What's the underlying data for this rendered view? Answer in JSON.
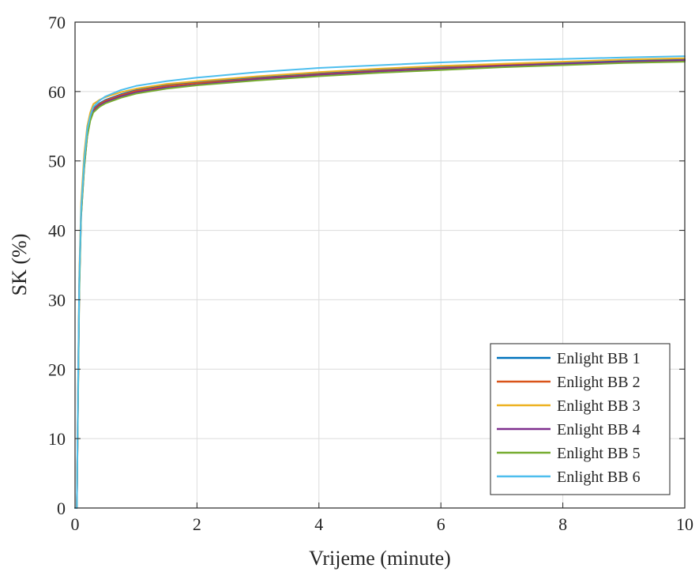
{
  "chart_data": {
    "type": "line",
    "title": "",
    "xlabel": "Vrijeme (minute)",
    "ylabel": "SK (%)",
    "xlim": [
      0,
      10
    ],
    "ylim": [
      0,
      70
    ],
    "xticks": [
      0,
      2,
      4,
      6,
      8,
      10
    ],
    "yticks": [
      0,
      10,
      20,
      30,
      40,
      50,
      60,
      70
    ],
    "grid": true,
    "legend_position": "bottom-right",
    "series": [
      {
        "name": "Enlight BB 1",
        "color": "#0072BD",
        "x": [
          0,
          0.03,
          0.05,
          0.07,
          0.1,
          0.15,
          0.2,
          0.25,
          0.3,
          0.4,
          0.5,
          0.75,
          1,
          1.5,
          2,
          3,
          4,
          5,
          6,
          7,
          8,
          9,
          10
        ],
        "y": [
          0,
          0,
          18,
          33,
          43,
          50,
          54,
          56,
          57.5,
          58.3,
          58.8,
          59.6,
          60.2,
          60.9,
          61.3,
          62.0,
          62.6,
          63.1,
          63.5,
          63.8,
          64.1,
          64.4,
          64.6
        ]
      },
      {
        "name": "Enlight BB 2",
        "color": "#D95319",
        "x": [
          0,
          0.03,
          0.05,
          0.07,
          0.1,
          0.15,
          0.2,
          0.25,
          0.3,
          0.4,
          0.5,
          0.75,
          1,
          1.5,
          2,
          3,
          4,
          5,
          6,
          7,
          8,
          9,
          10
        ],
        "y": [
          0,
          0,
          17,
          32,
          43,
          50,
          54,
          56,
          57.4,
          58.2,
          58.7,
          59.5,
          60.1,
          60.8,
          61.2,
          61.9,
          62.5,
          63.0,
          63.4,
          63.8,
          64.0,
          64.3,
          64.5
        ]
      },
      {
        "name": "Enlight BB 3",
        "color": "#EDB120",
        "x": [
          0,
          0.03,
          0.05,
          0.07,
          0.1,
          0.15,
          0.2,
          0.25,
          0.3,
          0.4,
          0.5,
          0.75,
          1,
          1.5,
          2,
          3,
          4,
          5,
          6,
          7,
          8,
          9,
          10
        ],
        "y": [
          0,
          0,
          19,
          34,
          44,
          51,
          55,
          57,
          58.2,
          58.8,
          59.2,
          59.9,
          60.4,
          61.1,
          61.5,
          62.2,
          62.8,
          63.3,
          63.7,
          64.0,
          64.3,
          64.6,
          64.8
        ]
      },
      {
        "name": "Enlight BB 4",
        "color": "#7E2F8E",
        "x": [
          0,
          0.03,
          0.05,
          0.07,
          0.1,
          0.15,
          0.2,
          0.25,
          0.3,
          0.4,
          0.5,
          0.75,
          1,
          1.5,
          2,
          3,
          4,
          5,
          6,
          7,
          8,
          9,
          10
        ],
        "y": [
          0,
          0,
          17,
          32,
          42,
          49,
          53.5,
          56,
          57.2,
          58.0,
          58.5,
          59.3,
          59.9,
          60.6,
          61.0,
          61.8,
          62.4,
          62.9,
          63.3,
          63.7,
          64.0,
          64.3,
          64.5
        ]
      },
      {
        "name": "Enlight BB 5",
        "color": "#77AC30",
        "x": [
          0,
          0.03,
          0.05,
          0.07,
          0.1,
          0.15,
          0.2,
          0.25,
          0.3,
          0.4,
          0.5,
          0.75,
          1,
          1.5,
          2,
          3,
          4,
          5,
          6,
          7,
          8,
          9,
          10
        ],
        "y": [
          0,
          0,
          16,
          31,
          42,
          49,
          53.5,
          55.8,
          57.0,
          57.8,
          58.3,
          59.1,
          59.7,
          60.4,
          60.9,
          61.6,
          62.2,
          62.7,
          63.1,
          63.5,
          63.8,
          64.1,
          64.3
        ]
      },
      {
        "name": "Enlight BB 6",
        "color": "#4DBEEE",
        "x": [
          0,
          0.03,
          0.05,
          0.07,
          0.1,
          0.15,
          0.2,
          0.25,
          0.3,
          0.4,
          0.5,
          0.75,
          1,
          1.5,
          2,
          3,
          4,
          5,
          6,
          7,
          8,
          9,
          10
        ],
        "y": [
          0,
          0,
          18,
          33,
          43,
          50,
          54.5,
          56.5,
          57.8,
          58.7,
          59.3,
          60.2,
          60.8,
          61.5,
          62.0,
          62.8,
          63.4,
          63.8,
          64.2,
          64.5,
          64.7,
          64.9,
          65.1
        ]
      }
    ]
  }
}
